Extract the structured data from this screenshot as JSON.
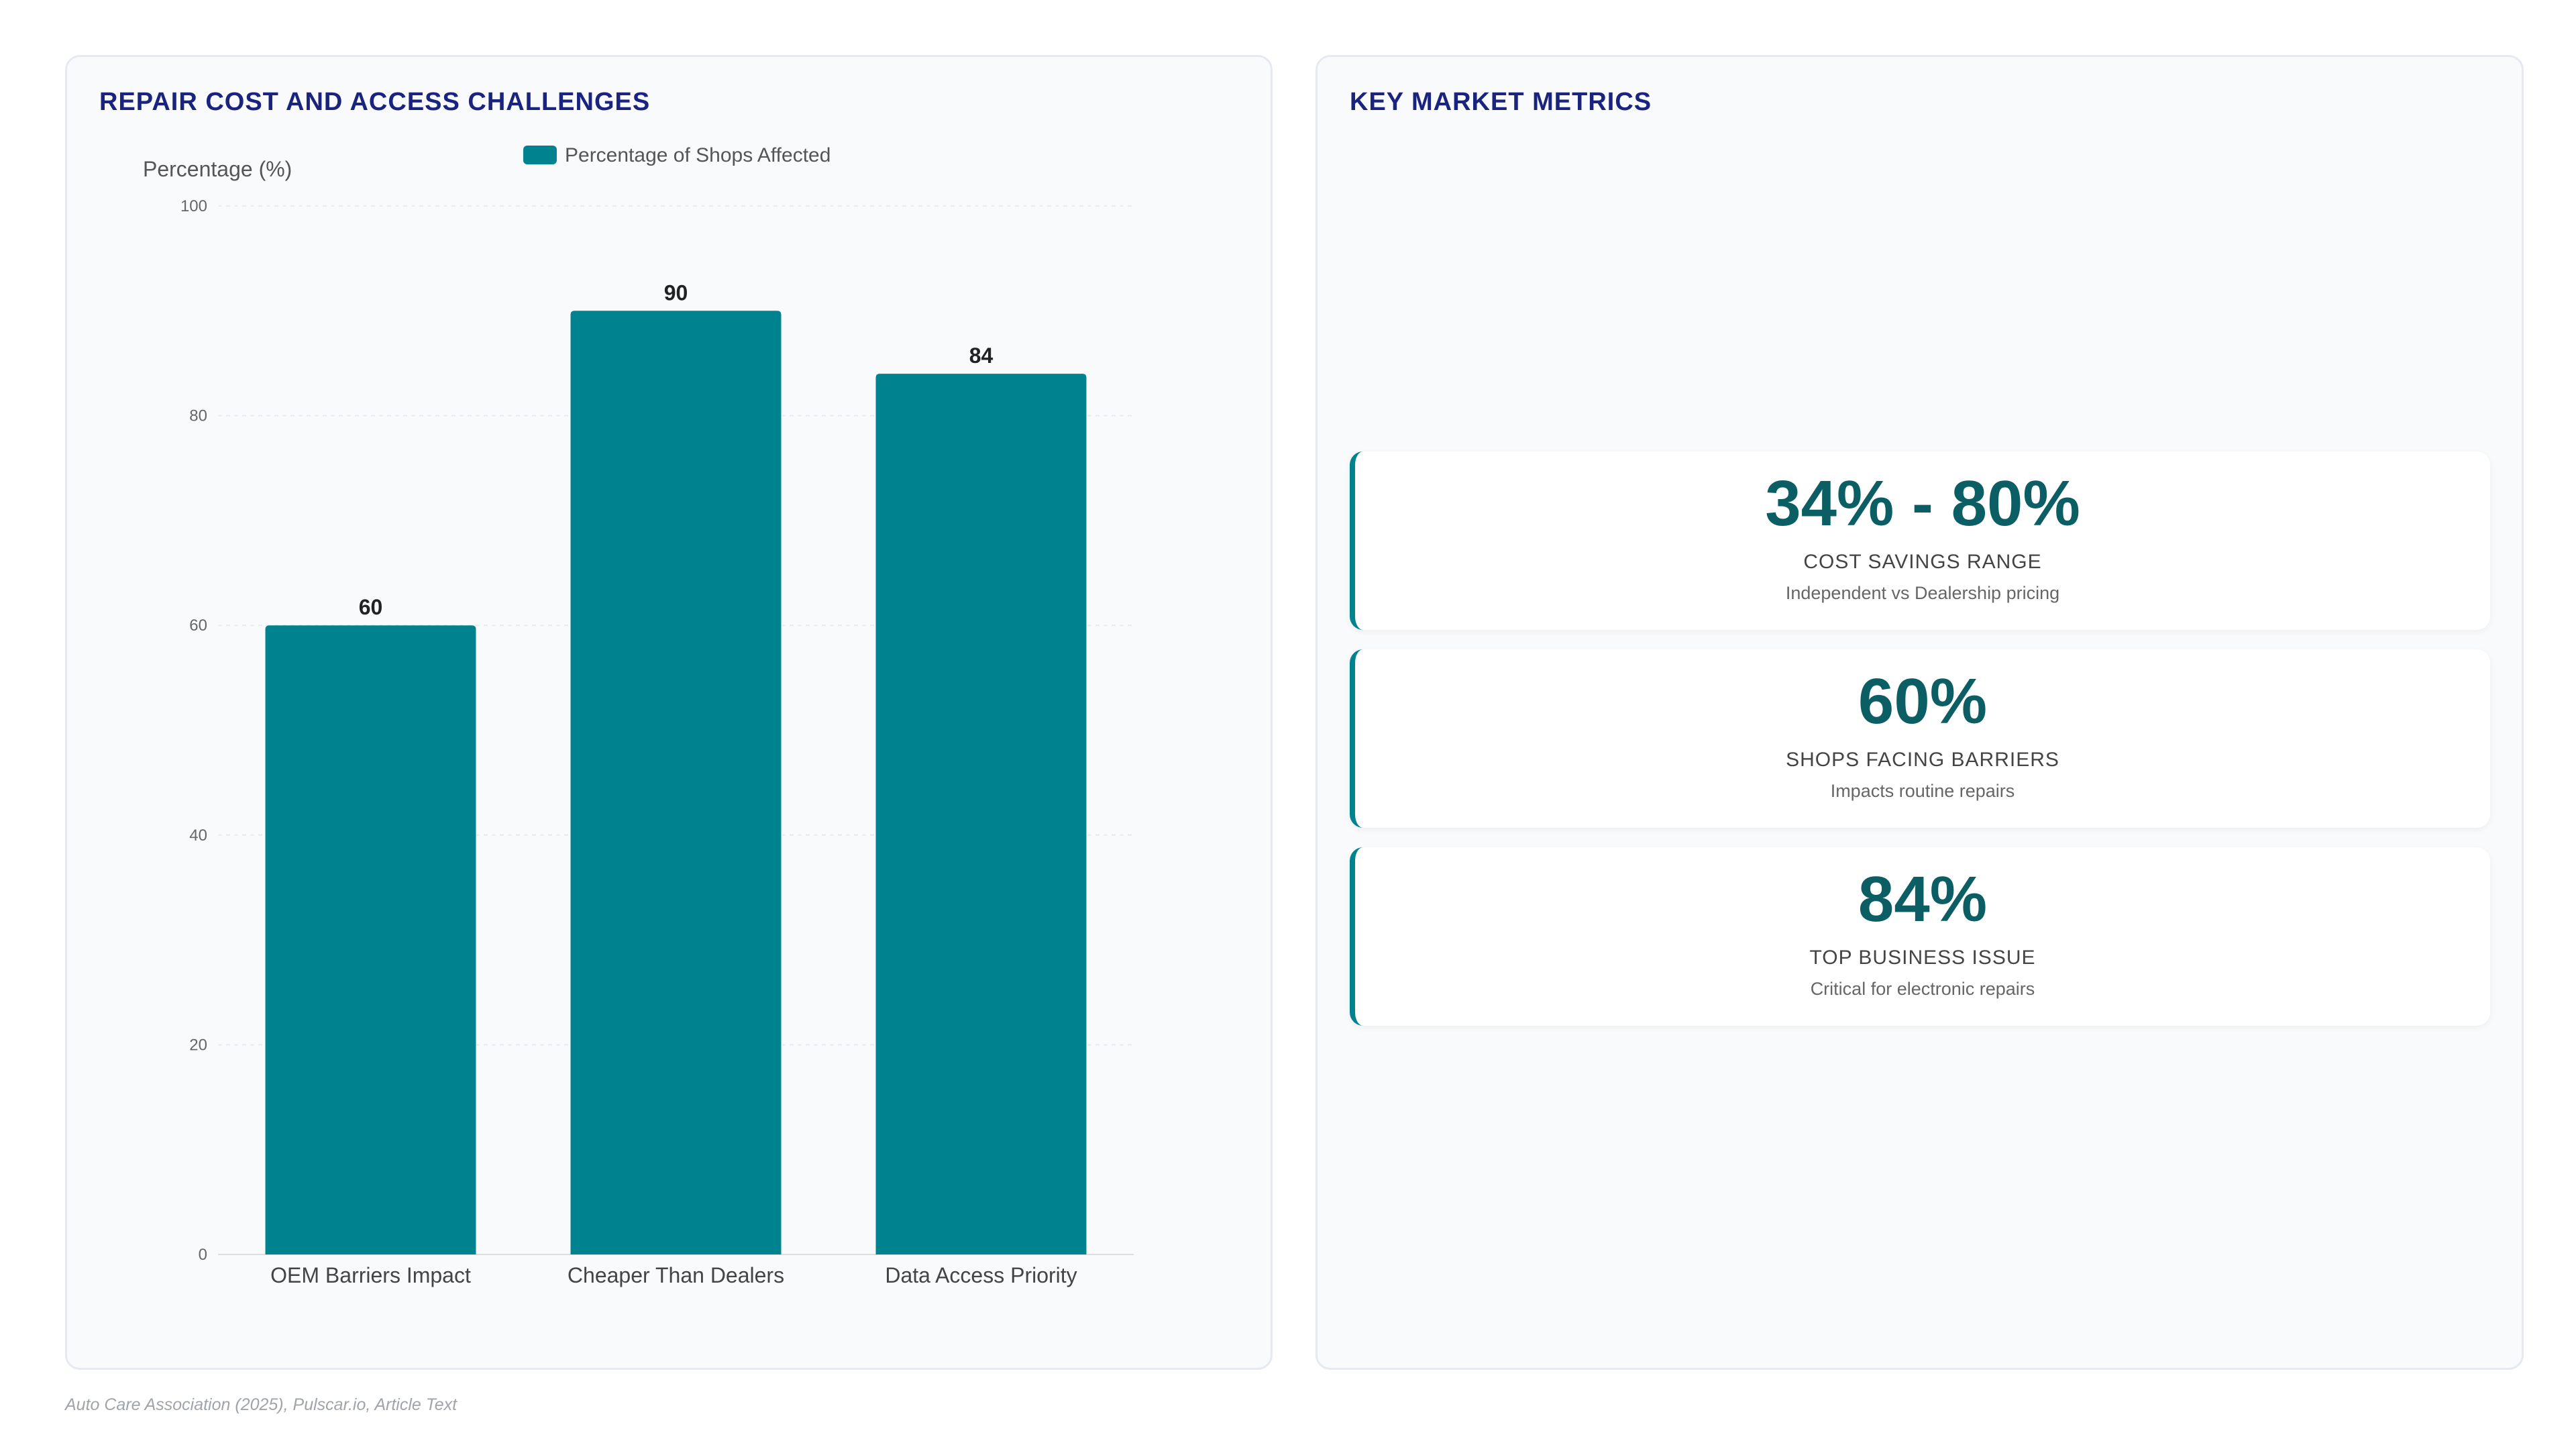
{
  "left_panel": {
    "title": "REPAIR COST AND ACCESS CHALLENGES"
  },
  "chart_data": {
    "type": "bar",
    "title": "REPAIR COST AND ACCESS CHALLENGES",
    "categories": [
      "OEM Barriers Impact",
      "Cheaper Than Dealers",
      "Data Access Priority"
    ],
    "series": [
      {
        "name": "Percentage of Shops Affected",
        "values": [
          60,
          90,
          84
        ],
        "color": "#00838f"
      }
    ],
    "ylabel": "Percentage (%)",
    "xlabel": "",
    "ylim": [
      0,
      100
    ],
    "yticks": [
      "0",
      "20",
      "40",
      "60",
      "80",
      "100"
    ],
    "data_labels": [
      "60",
      "90",
      "84"
    ],
    "grid": true,
    "legend_position": "top"
  },
  "right_panel": {
    "title": "KEY MARKET METRICS",
    "metrics": [
      {
        "value": "34% - 80%",
        "label": "COST SAVINGS RANGE",
        "subtext": "Independent vs Dealership pricing"
      },
      {
        "value": "60%",
        "label": "SHOPS FACING BARRIERS",
        "subtext": "Impacts routine repairs"
      },
      {
        "value": "84%",
        "label": "TOP BUSINESS ISSUE",
        "subtext": "Critical for electronic repairs"
      }
    ]
  },
  "source": "Auto Care Association (2025), Pulscar.io, Article Text",
  "colors": {
    "accent": "#00838f",
    "title": "#1a237e",
    "metric_value": "#0b5e63"
  }
}
